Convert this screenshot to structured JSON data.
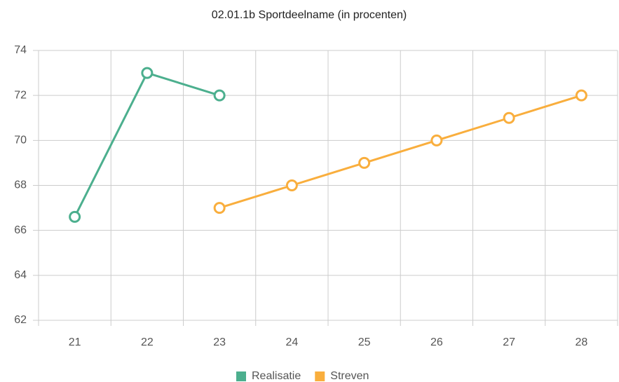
{
  "chart_data": {
    "type": "line",
    "title": "02.01.1b Sportdeelname (in procenten)",
    "categories": [
      "21",
      "22",
      "23",
      "24",
      "25",
      "26",
      "27",
      "28"
    ],
    "series": [
      {
        "name": "Realisatie",
        "color": "#4caf8e",
        "values": [
          66.6,
          73,
          72,
          null,
          null,
          null,
          null,
          null
        ]
      },
      {
        "name": "Streven",
        "color": "#f9ae3d",
        "values": [
          null,
          null,
          67,
          68,
          69,
          70,
          71,
          72
        ]
      }
    ],
    "ylim": [
      62,
      74
    ],
    "yticks": [
      62,
      64,
      66,
      68,
      70,
      72,
      74
    ],
    "grid": true,
    "legend": "bottom"
  }
}
